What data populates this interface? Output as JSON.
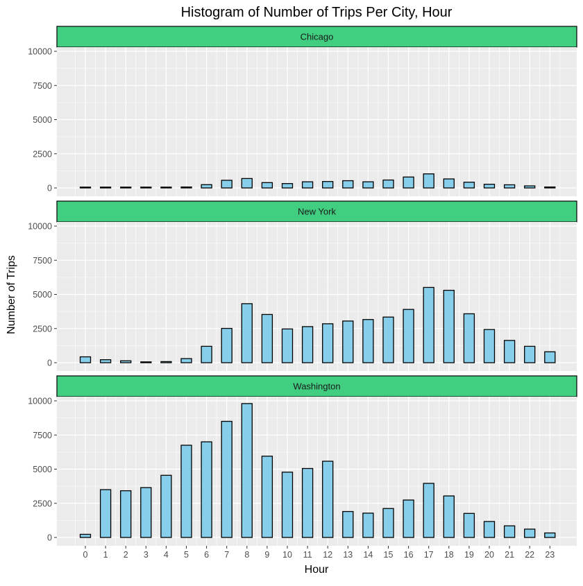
{
  "chart_data": {
    "type": "bar",
    "title": "Histogram of Number of Trips Per City, Hour",
    "xlabel": "Hour",
    "ylabel": "Number of Trips",
    "categories": [
      "0",
      "1",
      "2",
      "3",
      "4",
      "5",
      "6",
      "7",
      "8",
      "9",
      "10",
      "11",
      "12",
      "13",
      "14",
      "15",
      "16",
      "17",
      "18",
      "19",
      "20",
      "21",
      "22",
      "23"
    ],
    "ylim": [
      0,
      10000
    ],
    "yticks": [
      0,
      2500,
      5000,
      7500,
      10000
    ],
    "facet_strip_color": "#42CE80",
    "bar_fill": "#87CEEB",
    "bar_stroke": "#000000",
    "panel_background": "#EBEBEB",
    "grid": true,
    "facets": [
      {
        "name": "Chicago",
        "values": [
          60,
          30,
          25,
          20,
          25,
          70,
          240,
          560,
          690,
          390,
          320,
          450,
          470,
          530,
          450,
          580,
          800,
          1030,
          660,
          420,
          270,
          230,
          150,
          70
        ]
      },
      {
        "name": "New York",
        "values": [
          430,
          220,
          140,
          60,
          80,
          300,
          1200,
          2510,
          4320,
          3530,
          2470,
          2640,
          2850,
          3050,
          3160,
          3340,
          3900,
          5510,
          5300,
          3580,
          2430,
          1630,
          1200,
          800
        ]
      },
      {
        "name": "Washington",
        "values": [
          230,
          3500,
          3420,
          3650,
          4550,
          6750,
          7000,
          8500,
          9800,
          5950,
          4780,
          5050,
          5580,
          1900,
          1780,
          2120,
          2740,
          3960,
          3040,
          1760,
          1170,
          850,
          610,
          330
        ]
      }
    ]
  }
}
